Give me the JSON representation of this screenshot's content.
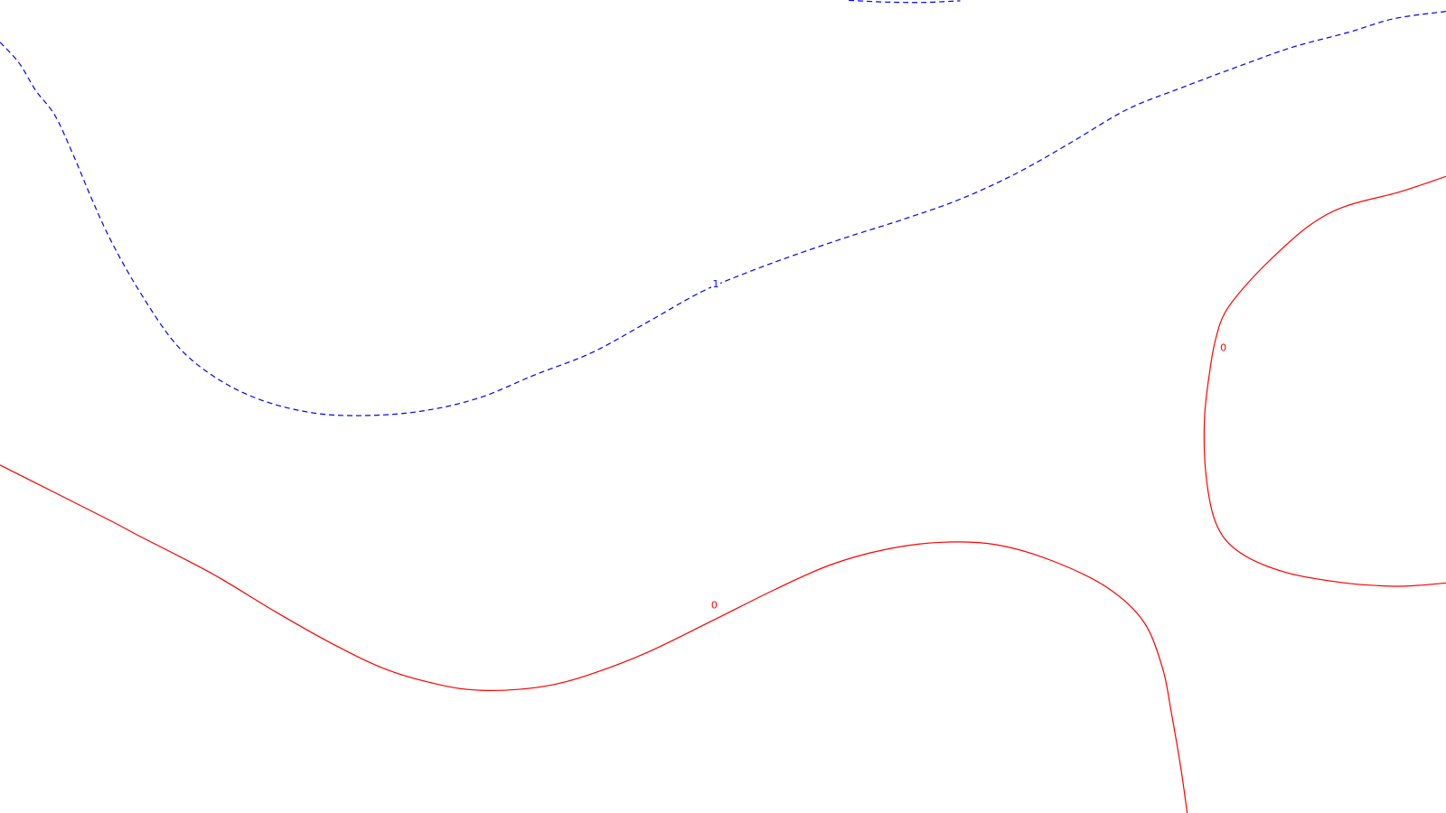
{
  "chart_data": {
    "type": "contour",
    "title": "",
    "xlabel": "",
    "ylabel": "",
    "xlim": [
      0,
      1
    ],
    "ylim": [
      0,
      1
    ],
    "grid": false,
    "levels": [
      {
        "value": 1,
        "label": "1",
        "color": "#0000ff",
        "dash": "dashed",
        "paths": [
          [
            [
              0.0,
              0.948
            ],
            [
              0.013,
              0.923
            ],
            [
              0.025,
              0.888
            ],
            [
              0.038,
              0.858
            ],
            [
              0.051,
              0.808
            ],
            [
              0.064,
              0.753
            ],
            [
              0.077,
              0.703
            ],
            [
              0.096,
              0.643
            ],
            [
              0.121,
              0.578
            ],
            [
              0.147,
              0.538
            ],
            [
              0.179,
              0.509
            ],
            [
              0.217,
              0.492
            ],
            [
              0.255,
              0.489
            ],
            [
              0.294,
              0.495
            ],
            [
              0.332,
              0.511
            ],
            [
              0.37,
              0.539
            ],
            [
              0.409,
              0.566
            ],
            [
              0.447,
              0.603
            ],
            [
              0.485,
              0.641
            ],
            [
              0.517,
              0.665
            ],
            [
              0.549,
              0.686
            ],
            [
              0.587,
              0.709
            ],
            [
              0.626,
              0.731
            ],
            [
              0.664,
              0.755
            ],
            [
              0.702,
              0.786
            ],
            [
              0.74,
              0.824
            ],
            [
              0.779,
              0.865
            ],
            [
              0.817,
              0.892
            ],
            [
              0.856,
              0.918
            ],
            [
              0.894,
              0.942
            ],
            [
              0.932,
              0.96
            ],
            [
              0.964,
              0.977
            ],
            [
              1.0,
              0.986
            ]
          ],
          [
            [
              0.587,
              0.9995
            ],
            [
              0.613,
              0.9975
            ],
            [
              0.638,
              0.997
            ],
            [
              0.664,
              0.999
            ]
          ]
        ],
        "label_at": [
          0.495,
          0.651
        ]
      },
      {
        "value": 0,
        "label": "0",
        "color": "#ff0000",
        "dash": "solid",
        "paths": [
          [
            [
              0.0,
              0.428
            ],
            [
              0.038,
              0.394
            ],
            [
              0.077,
              0.359
            ],
            [
              0.096,
              0.341
            ],
            [
              0.128,
              0.312
            ],
            [
              0.153,
              0.288
            ],
            [
              0.191,
              0.247
            ],
            [
              0.23,
              0.208
            ],
            [
              0.268,
              0.176
            ],
            [
              0.306,
              0.157
            ],
            [
              0.332,
              0.151
            ],
            [
              0.358,
              0.152
            ],
            [
              0.383,
              0.158
            ],
            [
              0.409,
              0.171
            ],
            [
              0.447,
              0.197
            ],
            [
              0.492,
              0.236
            ],
            [
              0.536,
              0.275
            ],
            [
              0.574,
              0.305
            ],
            [
              0.612,
              0.324
            ],
            [
              0.651,
              0.333
            ],
            [
              0.689,
              0.33
            ],
            [
              0.728,
              0.31
            ],
            [
              0.766,
              0.277
            ],
            [
              0.791,
              0.235
            ],
            [
              0.804,
              0.178
            ],
            [
              0.81,
              0.124
            ],
            [
              0.817,
              0.051
            ],
            [
              0.821,
              0.0
            ]
          ],
          [
            [
              1.0,
              0.783
            ],
            [
              0.968,
              0.764
            ],
            [
              0.93,
              0.746
            ],
            [
              0.905,
              0.722
            ],
            [
              0.88,
              0.683
            ],
            [
              0.86,
              0.646
            ],
            [
              0.847,
              0.615
            ],
            [
              0.841,
              0.585
            ],
            [
              0.837,
              0.548
            ],
            [
              0.833,
              0.486
            ],
            [
              0.834,
              0.416
            ],
            [
              0.841,
              0.356
            ],
            [
              0.857,
              0.321
            ],
            [
              0.889,
              0.296
            ],
            [
              0.93,
              0.283
            ],
            [
              0.962,
              0.279
            ],
            [
              0.981,
              0.28
            ],
            [
              1.0,
              0.283
            ]
          ]
        ],
        "label_at": [
          [
            0.494,
            0.256
          ],
          [
            0.846,
            0.573
          ]
        ]
      }
    ]
  }
}
